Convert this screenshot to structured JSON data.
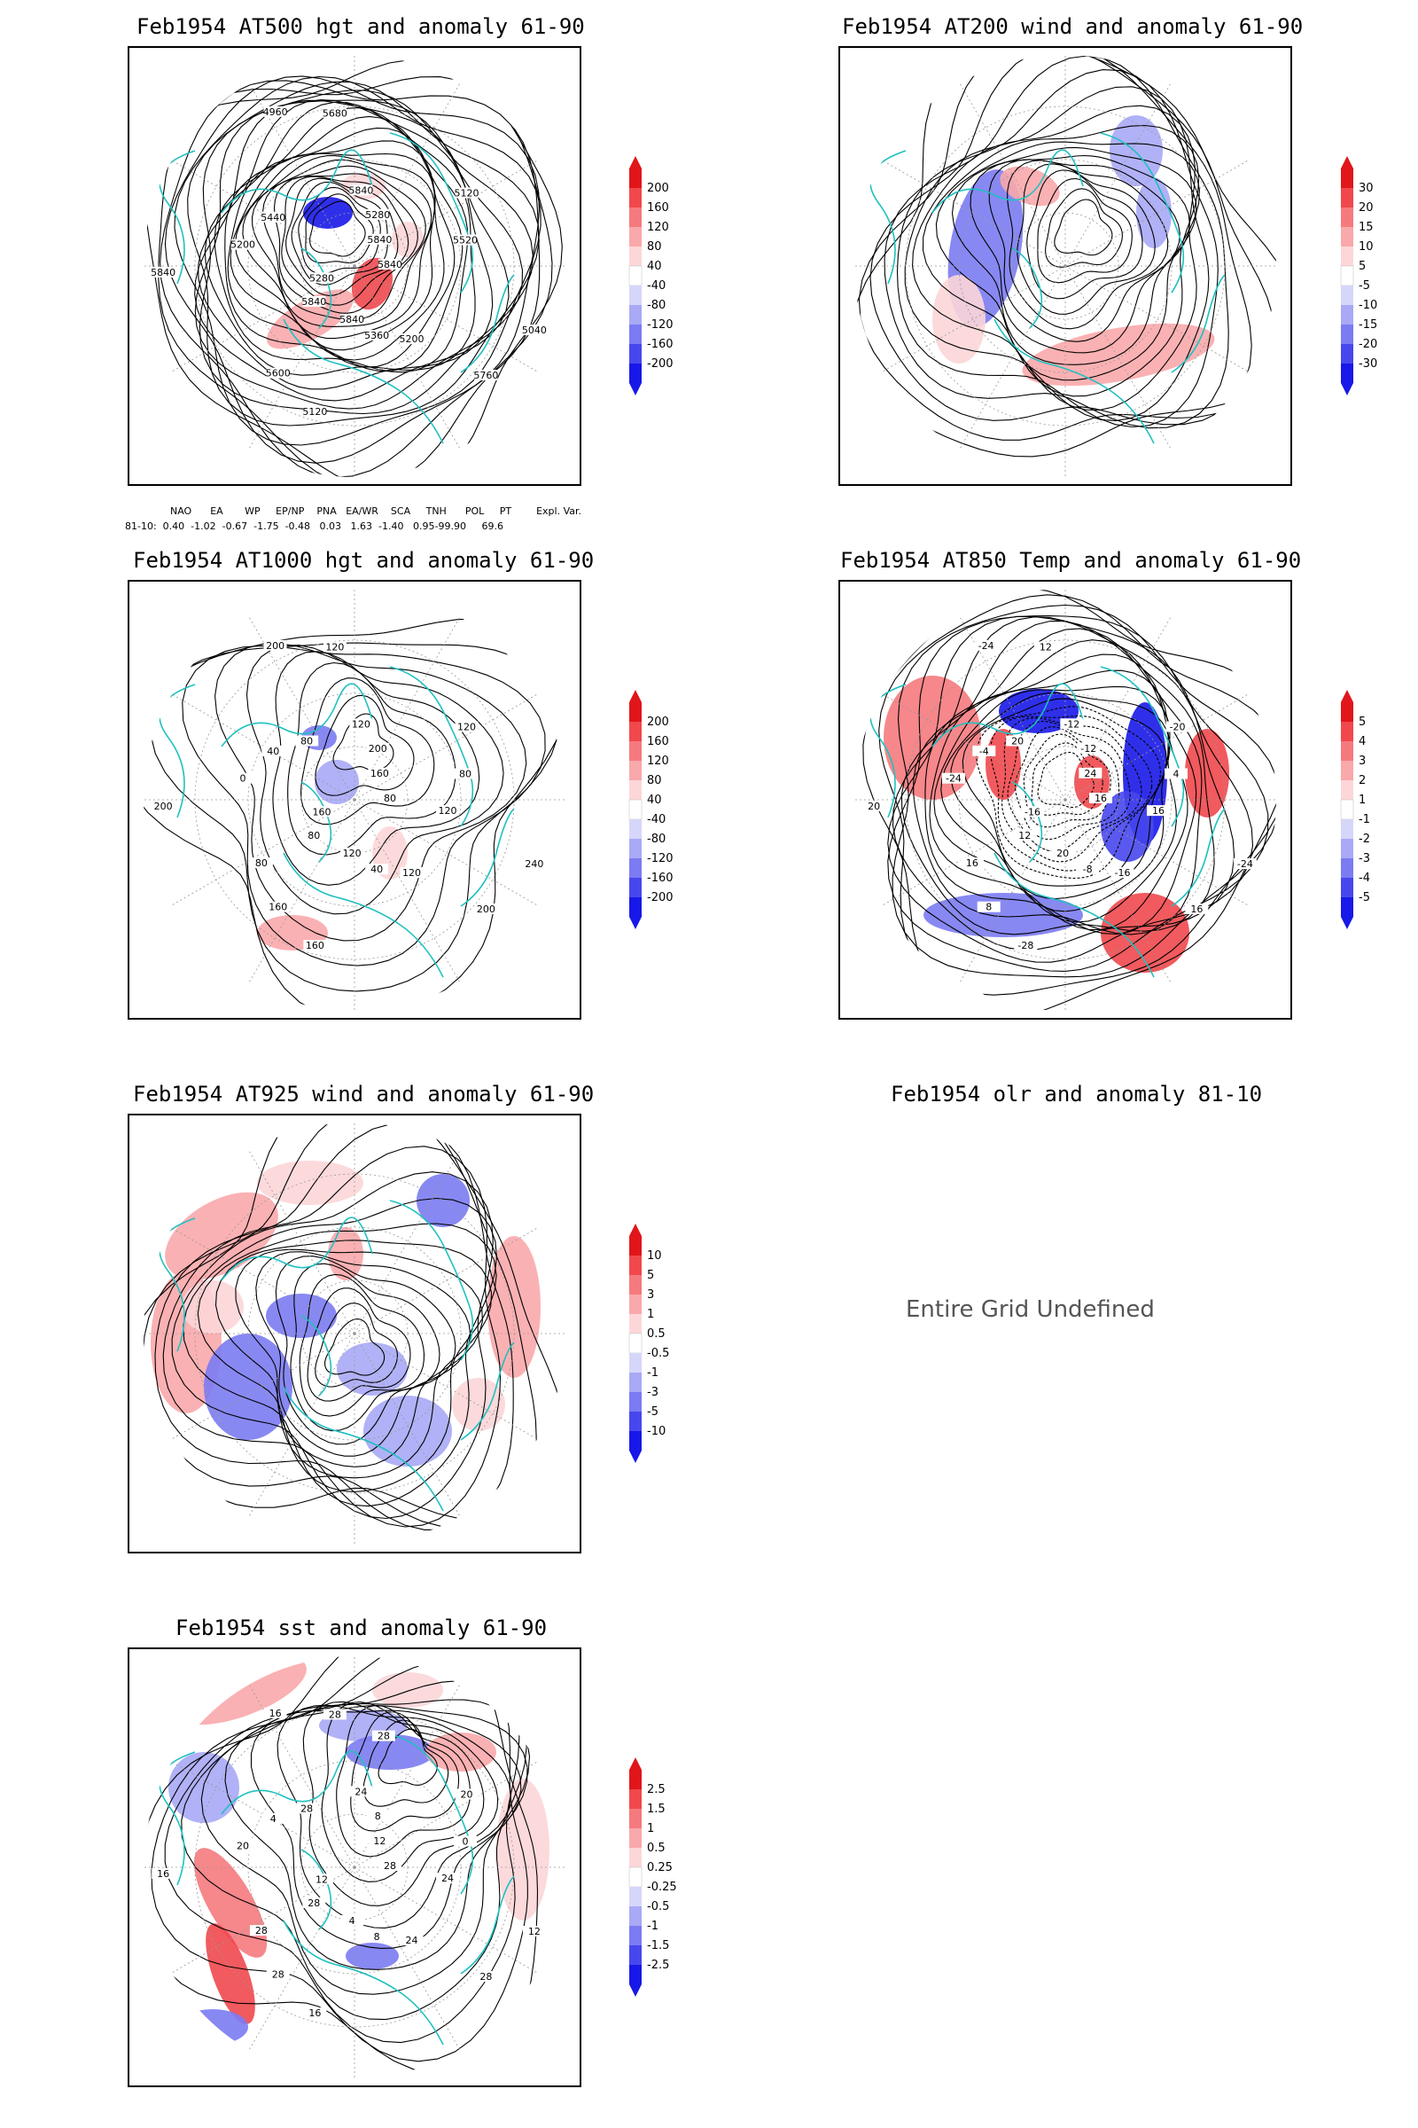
{
  "panels": [
    {
      "id": "p1",
      "title": "Feb1954 AT500 hgt and anomaly 61-90",
      "colorbar": [
        "200",
        "160",
        "120",
        "80",
        "40",
        "-40",
        "-80",
        "-120",
        "-160",
        "-200"
      ],
      "contour_labels": [
        "5840",
        "5840",
        "5840",
        "5200",
        "5200",
        "5120",
        "5120",
        "4960",
        "5040",
        "5280",
        "5280",
        "5360",
        "5440",
        "5520",
        "5600",
        "5680",
        "5760",
        "5840",
        "5840",
        "5840"
      ]
    },
    {
      "id": "p2",
      "title": "Feb1954 AT200 wind and anomaly 61-90",
      "colorbar": [
        "30",
        "20",
        "15",
        "10",
        "5",
        "-5",
        "-10",
        "-15",
        "-20",
        "-30"
      ],
      "contour_labels": []
    },
    {
      "id": "p3",
      "title": "Feb1954 AT1000 hgt and anomaly 61-90",
      "colorbar": [
        "200",
        "160",
        "120",
        "80",
        "40",
        "-40",
        "-80",
        "-120",
        "-160",
        "-200"
      ],
      "contour_labels": [
        "80",
        "80",
        "120",
        "120",
        "0",
        "120",
        "160",
        "200",
        "240",
        "160",
        "200",
        "40",
        "40",
        "80",
        "160",
        "120",
        "200",
        "200",
        "160",
        "120",
        "80",
        "120",
        "80"
      ]
    },
    {
      "id": "p4",
      "title": "Feb1954 AT850 Temp and anomaly 61-90",
      "colorbar": [
        "5",
        "4",
        "3",
        "2",
        "1",
        "-1",
        "-2",
        "-3",
        "-4",
        "-5"
      ],
      "contour_labels": [
        "16",
        "12",
        "-12",
        "-16",
        "-24",
        "-20",
        "-28",
        "-24",
        "-24",
        "-16",
        "-12",
        "-8",
        "-4",
        "4",
        "8",
        "12",
        "16",
        "20",
        "24",
        "20",
        "20",
        "16",
        "16"
      ]
    },
    {
      "id": "p5",
      "title": "Feb1954 AT925 wind and anomaly 61-90",
      "colorbar": [
        "10",
        "5",
        "3",
        "1",
        "0.5",
        "-0.5",
        "-1",
        "-3",
        "-5",
        "-10"
      ],
      "contour_labels": []
    },
    {
      "id": "p6",
      "title": "Feb1954 olr and anomaly 81-10",
      "message": "Entire Grid Undefined"
    },
    {
      "id": "p7",
      "title": "Feb1954 sst and anomaly 61-90",
      "colorbar": [
        "2.5",
        "1.5",
        "1",
        "0.5",
        "0.25",
        "-0.25",
        "-0.5",
        "-1",
        "-1.5",
        "-2.5"
      ],
      "contour_labels": [
        "28",
        "28",
        "24",
        "24",
        "20",
        "20",
        "16",
        "16",
        "12",
        "12",
        "8",
        "8",
        "4",
        "0",
        "28",
        "28",
        "28",
        "16",
        "12",
        "4",
        "28",
        "24",
        "28",
        "28"
      ]
    }
  ],
  "indices": {
    "header": [
      "NAO",
      "EA",
      "WP",
      "EP/NP",
      "PNA",
      "EA/WR",
      "SCA",
      "TNH",
      "POL",
      "PT",
      "Expl. Var."
    ],
    "row_label": "81-10:",
    "values": [
      "0.40",
      "-1.02",
      "-0.67",
      "-1.75",
      "-0.48",
      "0.03",
      "1.63",
      "-1.40",
      "0.95",
      "-99.90",
      "69.6"
    ]
  },
  "colors": {
    "contour": "#000000",
    "coast": "#20c0c0",
    "grid": "#999999",
    "cbar": [
      "#e0161a",
      "#f0484c",
      "#f57a7e",
      "#f9a8ab",
      "#fcd6d8",
      "#ffffff",
      "#d6d6fb",
      "#a9a9f6",
      "#7b7bf2",
      "#4747ee",
      "#1818e8"
    ]
  }
}
